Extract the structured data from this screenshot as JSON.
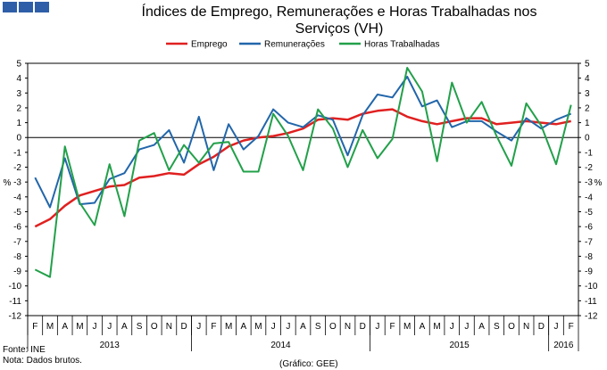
{
  "header": {
    "title_line1": "Índices de Emprego, Remunerações e Horas Trabalhadas nos",
    "title_line2": "Serviços (VH)"
  },
  "footer": {
    "source": "Fonte: INE",
    "note": "Nota: Dados brutos.",
    "credit": "(Gráfico: GEE)"
  },
  "colors": {
    "brand": "#2e5ea8"
  },
  "chart_data": {
    "type": "line",
    "title": "Índices de Emprego, Remunerações e Horas Trabalhadas nos Serviços (VH)",
    "ylabel": "%",
    "ylabel_right": "%",
    "ylim": [
      -12,
      5
    ],
    "yticks": [
      -12,
      -11,
      -10,
      -9,
      -8,
      -7,
      -6,
      -5,
      -4,
      -3,
      -2,
      -1,
      0,
      1,
      2,
      3,
      4,
      5
    ],
    "grid": false,
    "legend": "top-center",
    "categories": [
      "F",
      "M",
      "A",
      "M",
      "J",
      "J",
      "A",
      "S",
      "O",
      "N",
      "D",
      "J",
      "F",
      "M",
      "A",
      "M",
      "J",
      "J",
      "A",
      "S",
      "O",
      "N",
      "D",
      "J",
      "F",
      "M",
      "A",
      "M",
      "J",
      "J",
      "A",
      "S",
      "O",
      "N",
      "D",
      "J",
      "F"
    ],
    "years": [
      {
        "label": "2013",
        "start": 0,
        "end": 10
      },
      {
        "label": "2014",
        "start": 11,
        "end": 22
      },
      {
        "label": "2015",
        "start": 23,
        "end": 34
      },
      {
        "label": "2016",
        "start": 35,
        "end": 36
      }
    ],
    "series": [
      {
        "name": "Emprego",
        "color": "#e02020",
        "values": [
          -6.0,
          -5.5,
          -4.6,
          -3.9,
          -3.6,
          -3.3,
          -3.2,
          -2.7,
          -2.6,
          -2.4,
          -2.5,
          -1.8,
          -1.3,
          -0.6,
          -0.2,
          0.0,
          0.1,
          0.3,
          0.6,
          1.2,
          1.3,
          1.2,
          1.6,
          1.8,
          1.9,
          1.4,
          1.1,
          0.9,
          1.1,
          1.3,
          1.3,
          0.9,
          1.0,
          1.1,
          1.0,
          0.9,
          1.1
        ]
      },
      {
        "name": "Remunerações",
        "color": "#2266aa",
        "values": [
          -2.7,
          -4.7,
          -1.4,
          -4.5,
          -4.4,
          -2.8,
          -2.4,
          -0.8,
          -0.5,
          0.5,
          -1.7,
          1.4,
          -2.2,
          0.9,
          -0.8,
          0.1,
          1.9,
          1.0,
          0.7,
          1.5,
          1.2,
          -1.2,
          1.5,
          2.9,
          2.7,
          4.1,
          2.1,
          2.5,
          0.7,
          1.1,
          1.1,
          0.4,
          -0.2,
          1.3,
          0.6,
          1.2,
          1.6
        ]
      },
      {
        "name": "Horas Trabalhadas",
        "color": "#22a04a",
        "values": [
          -8.9,
          -9.4,
          -0.6,
          -4.4,
          -5.9,
          -1.8,
          -5.3,
          -0.2,
          0.3,
          -2.2,
          -0.5,
          -1.7,
          -0.4,
          -0.3,
          -2.3,
          -2.3,
          1.6,
          0.1,
          -2.2,
          1.9,
          0.6,
          -2.0,
          0.5,
          -1.4,
          -0.1,
          4.7,
          3.1,
          -1.6,
          3.7,
          1.0,
          2.4,
          0.1,
          -1.9,
          2.3,
          0.8,
          -1.8,
          2.2
        ]
      }
    ]
  }
}
